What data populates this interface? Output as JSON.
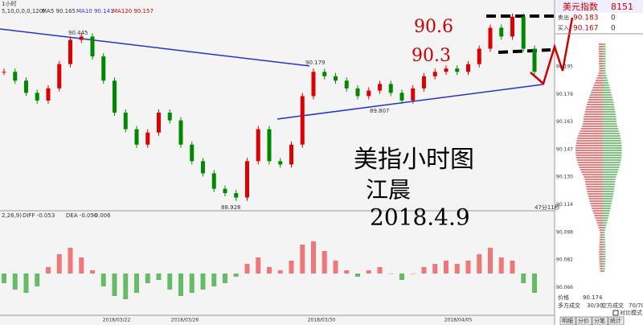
{
  "indicator_bar": [
    "5,10,0,0,0,120)",
    "MA5 90.165",
    "MA10 90.141",
    "MA120 90.157"
  ],
  "period_label": "1小时",
  "price_labels": {
    "high1": "90.445",
    "high2": "90.179",
    "low1": "89.807",
    "low2": "88.928",
    "countdown": "47分11秒"
  },
  "right_axis": [
    "90.195",
    "90.179",
    "90.163",
    "90.147",
    "90.130",
    "90.114",
    "90.098",
    "90.082",
    "90.066"
  ],
  "dates": [
    "2018/03/22",
    "2018/03/26",
    "2018/03/30",
    "2018/04/05"
  ],
  "macd_bar": [
    "2,26,9)",
    "DIFF -0.053",
    "DEA -0.050",
    "-0.006"
  ],
  "annotations": {
    "level1": "90.6",
    "level2": "90.3",
    "title": "美指小时图",
    "author": "江晨",
    "date": "2018.4.9"
  },
  "quote_panel": {
    "name": "美元指数",
    "code": "8151",
    "sell_label": "卖出",
    "sell_price": "90.183",
    "sell_vol": "0",
    "buy_label": "买入",
    "buy_price": "90.167",
    "buy_vol": "0",
    "price_label": "价格",
    "price": "90.174",
    "long_label": "多方成交",
    "long": "30/30",
    "short_label": "空方成交",
    "short": "70/70",
    "compare": "对比模式",
    "tabs": [
      "明细",
      "分价",
      "分笔",
      "统计"
    ]
  },
  "candles": {
    "closes": [
      90.1,
      90.02,
      89.91,
      89.84,
      89.95,
      90.17,
      90.39,
      90.42,
      90.24,
      90.02,
      89.73,
      89.58,
      89.44,
      89.55,
      89.73,
      89.66,
      89.44,
      89.29,
      89.18,
      89.04,
      89.0,
      88.96,
      89.29,
      89.58,
      89.29,
      89.26,
      89.44,
      89.88,
      90.1,
      90.06,
      90.02,
      89.95,
      89.88,
      89.93,
      89.99,
      89.91,
      89.84,
      89.95,
      90.06,
      90.1,
      90.13,
      90.1,
      90.17,
      90.31,
      90.5,
      90.42,
      90.6,
      90.31,
      90.1
    ]
  },
  "macd_hist": [
    -0.03,
    -0.05,
    -0.06,
    -0.04,
    0.02,
    0.06,
    0.08,
    0.05,
    0.01,
    -0.04,
    -0.07,
    -0.08,
    -0.06,
    -0.03,
    -0.02,
    -0.05,
    -0.07,
    -0.06,
    -0.05,
    -0.04,
    -0.03,
    -0.01,
    0.03,
    0.05,
    0.02,
    0.01,
    0.04,
    0.09,
    0.1,
    0.07,
    0.04,
    0.01,
    -0.01,
    0.01,
    0.02,
    0.0,
    -0.02,
    0.0,
    0.02,
    0.03,
    0.04,
    0.03,
    0.04,
    0.06,
    0.08,
    0.05,
    0.04,
    -0.03,
    -0.06
  ]
}
